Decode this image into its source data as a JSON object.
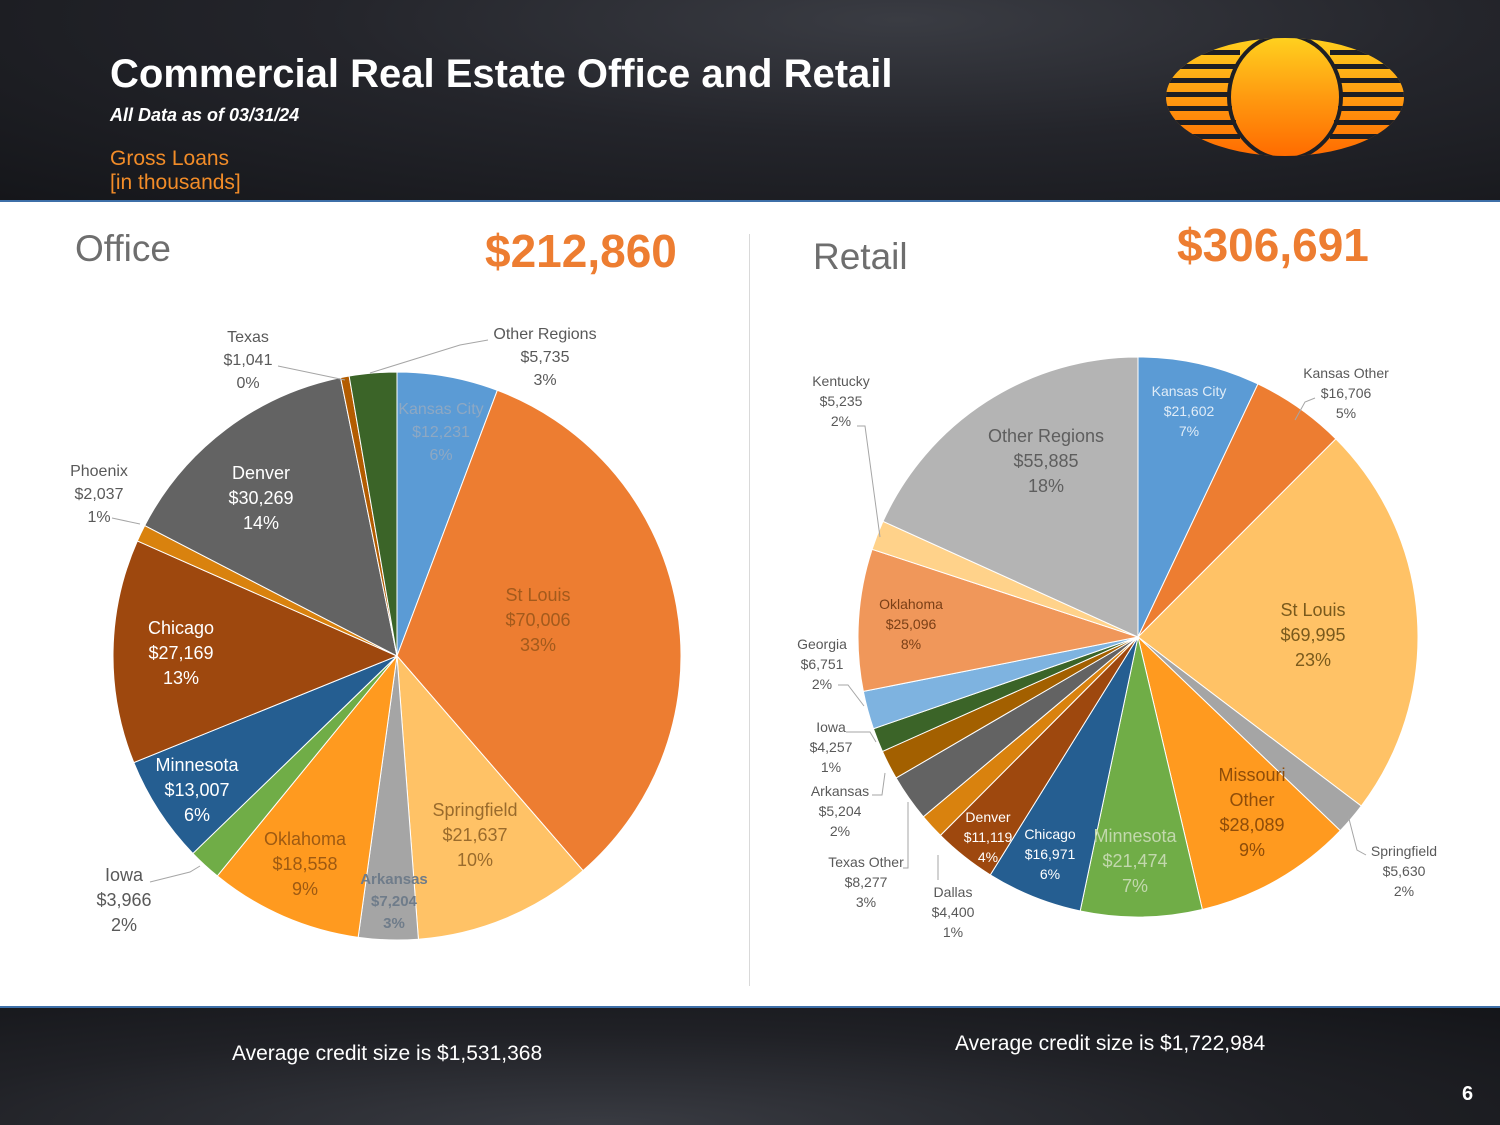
{
  "header": {
    "title": "Commercial Real Estate Office and Retail",
    "subtitle": "All Data as of 03/31/24",
    "gross_line1": "Gross Loans",
    "gross_line2": "[in thousands]"
  },
  "office": {
    "label": "Office",
    "total": "$212,860",
    "avg": "Average credit size is $1,531,368"
  },
  "retail": {
    "label": "Retail",
    "total": "$306,691",
    "avg": "Average credit size is $1,722,984"
  },
  "page_number": "6",
  "chart_data": [
    {
      "type": "pie",
      "name": "Office",
      "slices": [
        {
          "label": "Kansas City",
          "value": 12231,
          "display": "$12,231",
          "pct": "6%",
          "color": "#5b9bd5"
        },
        {
          "label": "St Louis",
          "value": 70006,
          "display": "$70,006",
          "pct": "33%",
          "color": "#ed7d31"
        },
        {
          "label": "Springfield",
          "value": 21637,
          "display": "$21,637",
          "pct": "10%",
          "color": "#ffc266"
        },
        {
          "label": "Arkansas",
          "value": 7204,
          "display": "$7,204",
          "pct": "3%",
          "color": "#a5a5a5"
        },
        {
          "label": "Oklahoma",
          "value": 18558,
          "display": "$18,558",
          "pct": "9%",
          "color": "#ff9a1f"
        },
        {
          "label": "Iowa",
          "value": 3966,
          "display": "$3,966",
          "pct": "2%",
          "color": "#70ad47"
        },
        {
          "label": "Minnesota",
          "value": 13007,
          "display": "$13,007",
          "pct": "6%",
          "color": "#255e91"
        },
        {
          "label": "Chicago",
          "value": 27169,
          "display": "$27,169",
          "pct": "13%",
          "color": "#9e480e"
        },
        {
          "label": "Phoenix",
          "value": 2037,
          "display": "$2,037",
          "pct": "1%",
          "color": "#d9820e"
        },
        {
          "label": "Denver",
          "value": 30269,
          "display": "$30,269",
          "pct": "14%",
          "color": "#636363"
        },
        {
          "label": "Texas",
          "value": 1041,
          "display": "$1,041",
          "pct": "0%",
          "color": "#b35c00"
        },
        {
          "label": "Other Regions",
          "value": 5735,
          "display": "$5,735",
          "pct": "3%",
          "color": "#3b6428"
        }
      ]
    },
    {
      "type": "pie",
      "name": "Retail",
      "slices": [
        {
          "label": "Kansas City",
          "value": 21602,
          "display": "$21,602",
          "pct": "7%",
          "color": "#5b9bd5"
        },
        {
          "label": "Kansas Other",
          "value": 16706,
          "display": "$16,706",
          "pct": "5%",
          "color": "#ed7d31"
        },
        {
          "label": "St Louis",
          "value": 69995,
          "display": "$69,995",
          "pct": "23%",
          "color": "#ffc266"
        },
        {
          "label": "Springfield",
          "value": 5630,
          "display": "$5,630",
          "pct": "2%",
          "color": "#a5a5a5"
        },
        {
          "label": "Missouri Other",
          "value": 28089,
          "display": "$28,089",
          "pct": "9%",
          "color": "#ff9a1f"
        },
        {
          "label": "Minnesota",
          "value": 21474,
          "display": "$21,474",
          "pct": "7%",
          "color": "#70ad47"
        },
        {
          "label": "Chicago",
          "value": 16971,
          "display": "$16,971",
          "pct": "6%",
          "color": "#255e91"
        },
        {
          "label": "Denver",
          "value": 11119,
          "display": "$11,119",
          "pct": "4%",
          "color": "#9e480e"
        },
        {
          "label": "Dallas",
          "value": 4400,
          "display": "$4,400",
          "pct": "1%",
          "color": "#d9820e"
        },
        {
          "label": "Texas Other",
          "value": 8277,
          "display": "$8,277",
          "pct": "3%",
          "color": "#636363"
        },
        {
          "label": "Arkansas",
          "value": 5204,
          "display": "$5,204",
          "pct": "2%",
          "color": "#a36000"
        },
        {
          "label": "Iowa",
          "value": 4257,
          "display": "$4,257",
          "pct": "1%",
          "color": "#3b6428"
        },
        {
          "label": "Georgia",
          "value": 6751,
          "display": "$6,751",
          "pct": "2%",
          "color": "#7eb3e0"
        },
        {
          "label": "Oklahoma",
          "value": 25096,
          "display": "$25,096",
          "pct": "8%",
          "color": "#f0975a"
        },
        {
          "label": "Kentucky",
          "value": 5235,
          "display": "$5,235",
          "pct": "2%",
          "color": "#ffd28a"
        },
        {
          "label": "Other Regions",
          "value": 55885,
          "display": "$55,885",
          "pct": "18%",
          "color": "#b4b4b4"
        }
      ]
    }
  ]
}
